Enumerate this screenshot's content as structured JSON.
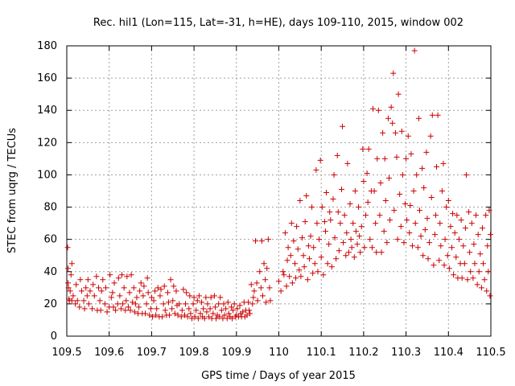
{
  "chart_data": {
    "type": "scatter",
    "title": "Rec. hil1 (Lon=115, Lat=-31, h=HE), days 109-110, 2015, window 002",
    "xlabel": "GPS time / Days of year 2015",
    "ylabel": "STEC from uqrg / TECUs",
    "xlim": [
      109.5,
      110.5
    ],
    "ylim": [
      0,
      180
    ],
    "xticks": [
      "109.5",
      "109.6",
      "109.7",
      "109.8",
      "109.9",
      "110",
      "110.1",
      "110.2",
      "110.3",
      "110.4",
      "110.5"
    ],
    "yticks": [
      "0",
      "20",
      "40",
      "60",
      "80",
      "100",
      "120",
      "140",
      "160",
      "180"
    ],
    "grid": true,
    "marker": "+",
    "color": "#cc0000",
    "points": [
      [
        109.502,
        55
      ],
      [
        109.503,
        42
      ],
      [
        109.503,
        33
      ],
      [
        109.504,
        30
      ],
      [
        109.505,
        23
      ],
      [
        109.506,
        22
      ],
      [
        109.508,
        28
      ],
      [
        109.51,
        38
      ],
      [
        109.512,
        45
      ],
      [
        109.512,
        22
      ],
      [
        109.515,
        25
      ],
      [
        109.52,
        20
      ],
      [
        109.522,
        32
      ],
      [
        109.525,
        22
      ],
      [
        109.53,
        18
      ],
      [
        109.532,
        35
      ],
      [
        109.535,
        28
      ],
      [
        109.54,
        22
      ],
      [
        109.542,
        17
      ],
      [
        109.545,
        30
      ],
      [
        109.548,
        25
      ],
      [
        109.55,
        35
      ],
      [
        109.552,
        20
      ],
      [
        109.555,
        28
      ],
      [
        109.56,
        17
      ],
      [
        109.562,
        32
      ],
      [
        109.565,
        25
      ],
      [
        109.57,
        37
      ],
      [
        109.572,
        16
      ],
      [
        109.575,
        30
      ],
      [
        109.578,
        22
      ],
      [
        109.58,
        16
      ],
      [
        109.582,
        28
      ],
      [
        109.585,
        35
      ],
      [
        109.59,
        20
      ],
      [
        109.592,
        30
      ],
      [
        109.595,
        15
      ],
      [
        109.6,
        18
      ],
      [
        109.602,
        38
      ],
      [
        109.605,
        24
      ],
      [
        109.608,
        27
      ],
      [
        109.61,
        18
      ],
      [
        109.612,
        33
      ],
      [
        109.615,
        16
      ],
      [
        109.62,
        20
      ],
      [
        109.622,
        36
      ],
      [
        109.625,
        25
      ],
      [
        109.628,
        17
      ],
      [
        109.63,
        38
      ],
      [
        109.632,
        20
      ],
      [
        109.635,
        30
      ],
      [
        109.638,
        16
      ],
      [
        109.64,
        22
      ],
      [
        109.642,
        37
      ],
      [
        109.645,
        18
      ],
      [
        109.648,
        27
      ],
      [
        109.65,
        16
      ],
      [
        109.652,
        38
      ],
      [
        109.655,
        21
      ],
      [
        109.658,
        30
      ],
      [
        109.66,
        15
      ],
      [
        109.662,
        20
      ],
      [
        109.665,
        24
      ],
      [
        109.668,
        14
      ],
      [
        109.67,
        18
      ],
      [
        109.672,
        28
      ],
      [
        109.675,
        33
      ],
      [
        109.678,
        14
      ],
      [
        109.68,
        25
      ],
      [
        109.682,
        31
      ],
      [
        109.685,
        14
      ],
      [
        109.688,
        20
      ],
      [
        109.69,
        36
      ],
      [
        109.692,
        27
      ],
      [
        109.695,
        13
      ],
      [
        109.698,
        17
      ],
      [
        109.7,
        24
      ],
      [
        109.702,
        12
      ],
      [
        109.705,
        22
      ],
      [
        109.708,
        28
      ],
      [
        109.71,
        13
      ],
      [
        109.712,
        17
      ],
      [
        109.715,
        30
      ],
      [
        109.718,
        12
      ],
      [
        109.72,
        25
      ],
      [
        109.722,
        29
      ],
      [
        109.725,
        12
      ],
      [
        109.728,
        20
      ],
      [
        109.73,
        31
      ],
      [
        109.732,
        16
      ],
      [
        109.735,
        13
      ],
      [
        109.738,
        27
      ],
      [
        109.74,
        21
      ],
      [
        109.742,
        13
      ],
      [
        109.745,
        35
      ],
      [
        109.748,
        17
      ],
      [
        109.75,
        22
      ],
      [
        109.752,
        31
      ],
      [
        109.755,
        14
      ],
      [
        109.758,
        28
      ],
      [
        109.76,
        19
      ],
      [
        109.762,
        13
      ],
      [
        109.765,
        20
      ],
      [
        109.77,
        12
      ],
      [
        109.772,
        16
      ],
      [
        109.775,
        29
      ],
      [
        109.778,
        13
      ],
      [
        109.78,
        20
      ],
      [
        109.782,
        27
      ],
      [
        109.785,
        12
      ],
      [
        109.788,
        17
      ],
      [
        109.79,
        25
      ],
      [
        109.792,
        14
      ],
      [
        109.795,
        11
      ],
      [
        109.798,
        20
      ],
      [
        109.8,
        24
      ],
      [
        109.802,
        12
      ],
      [
        109.805,
        16
      ],
      [
        109.808,
        22
      ],
      [
        109.81,
        11
      ],
      [
        109.812,
        25
      ],
      [
        109.815,
        14
      ],
      [
        109.818,
        21
      ],
      [
        109.82,
        12
      ],
      [
        109.822,
        17
      ],
      [
        109.825,
        11
      ],
      [
        109.828,
        24
      ],
      [
        109.83,
        15
      ],
      [
        109.832,
        20
      ],
      [
        109.835,
        12
      ],
      [
        109.838,
        17
      ],
      [
        109.84,
        24
      ],
      [
        109.842,
        11
      ],
      [
        109.845,
        14
      ],
      [
        109.848,
        25
      ],
      [
        109.85,
        18
      ],
      [
        109.852,
        11
      ],
      [
        109.855,
        13
      ],
      [
        109.858,
        20
      ],
      [
        109.86,
        12
      ],
      [
        109.862,
        24
      ],
      [
        109.865,
        16
      ],
      [
        109.868,
        11
      ],
      [
        109.87,
        20
      ],
      [
        109.872,
        13
      ],
      [
        109.875,
        17
      ],
      [
        109.878,
        11
      ],
      [
        109.88,
        21
      ],
      [
        109.882,
        14
      ],
      [
        109.885,
        12
      ],
      [
        109.888,
        18
      ],
      [
        109.89,
        11
      ],
      [
        109.892,
        16
      ],
      [
        109.895,
        20
      ],
      [
        109.898,
        12
      ],
      [
        109.9,
        13
      ],
      [
        109.902,
        17
      ],
      [
        109.905,
        12
      ],
      [
        109.908,
        19
      ],
      [
        109.91,
        14
      ],
      [
        109.912,
        12
      ],
      [
        109.915,
        15
      ],
      [
        109.918,
        21
      ],
      [
        109.92,
        12
      ],
      [
        109.922,
        16
      ],
      [
        109.925,
        13
      ],
      [
        109.928,
        21
      ],
      [
        109.93,
        16
      ],
      [
        109.932,
        14
      ],
      [
        109.935,
        32
      ],
      [
        109.938,
        20
      ],
      [
        109.94,
        24
      ],
      [
        109.942,
        28
      ],
      [
        109.945,
        59
      ],
      [
        109.948,
        33
      ],
      [
        109.95,
        22
      ],
      [
        109.955,
        40
      ],
      [
        109.958,
        30
      ],
      [
        109.96,
        59
      ],
      [
        109.962,
        25
      ],
      [
        109.965,
        45
      ],
      [
        109.968,
        35
      ],
      [
        109.97,
        21
      ],
      [
        109.972,
        42
      ],
      [
        109.975,
        60
      ],
      [
        109.978,
        30
      ],
      [
        109.98,
        22
      ],
      [
        110.0,
        34
      ],
      [
        110.005,
        28
      ],
      [
        110.01,
        40
      ],
      [
        110.012,
        38
      ],
      [
        110.015,
        64
      ],
      [
        110.018,
        31
      ],
      [
        110.02,
        47
      ],
      [
        110.022,
        55
      ],
      [
        110.025,
        37
      ],
      [
        110.028,
        50
      ],
      [
        110.03,
        70
      ],
      [
        110.032,
        33
      ],
      [
        110.035,
        59
      ],
      [
        110.038,
        45
      ],
      [
        110.04,
        36
      ],
      [
        110.042,
        68
      ],
      [
        110.045,
        54
      ],
      [
        110.048,
        41
      ],
      [
        110.05,
        84
      ],
      [
        110.052,
        37
      ],
      [
        110.055,
        61
      ],
      [
        110.058,
        50
      ],
      [
        110.06,
        43
      ],
      [
        110.062,
        71
      ],
      [
        110.065,
        87
      ],
      [
        110.068,
        35
      ],
      [
        110.07,
        56
      ],
      [
        110.072,
        48
      ],
      [
        110.075,
        62
      ],
      [
        110.078,
        80
      ],
      [
        110.08,
        39
      ],
      [
        110.082,
        55
      ],
      [
        110.085,
        45
      ],
      [
        110.088,
        103
      ],
      [
        110.09,
        70
      ],
      [
        110.092,
        40
      ],
      [
        110.095,
        60
      ],
      [
        110.098,
        109
      ],
      [
        110.1,
        49
      ],
      [
        110.102,
        80
      ],
      [
        110.105,
        38
      ],
      [
        110.108,
        71
      ],
      [
        110.11,
        65
      ],
      [
        110.112,
        89
      ],
      [
        110.115,
        45
      ],
      [
        110.118,
        57
      ],
      [
        110.12,
        77
      ],
      [
        110.122,
        72
      ],
      [
        110.125,
        43
      ],
      [
        110.128,
        85
      ],
      [
        110.13,
        100
      ],
      [
        110.132,
        61
      ],
      [
        110.135,
        48
      ],
      [
        110.138,
        112
      ],
      [
        110.14,
        77
      ],
      [
        110.142,
        53
      ],
      [
        110.145,
        70
      ],
      [
        110.148,
        91
      ],
      [
        110.15,
        130
      ],
      [
        110.152,
        58
      ],
      [
        110.155,
        75
      ],
      [
        110.158,
        50
      ],
      [
        110.16,
        64
      ],
      [
        110.162,
        107
      ],
      [
        110.165,
        52
      ],
      [
        110.168,
        82
      ],
      [
        110.17,
        60
      ],
      [
        110.172,
        55
      ],
      [
        110.175,
        70
      ],
      [
        110.178,
        49
      ],
      [
        110.18,
        90
      ],
      [
        110.182,
        65
      ],
      [
        110.185,
        57
      ],
      [
        110.188,
        80
      ],
      [
        110.19,
        62
      ],
      [
        110.192,
        52
      ],
      [
        110.195,
        68
      ],
      [
        110.198,
        116
      ],
      [
        110.2,
        96
      ],
      [
        110.202,
        55
      ],
      [
        110.205,
        75
      ],
      [
        110.208,
        101
      ],
      [
        110.21,
        83
      ],
      [
        110.212,
        116
      ],
      [
        110.215,
        60
      ],
      [
        110.218,
        90
      ],
      [
        110.22,
        55
      ],
      [
        110.222,
        141
      ],
      [
        110.225,
        90
      ],
      [
        110.228,
        70
      ],
      [
        110.23,
        52
      ],
      [
        110.232,
        110
      ],
      [
        110.235,
        140
      ],
      [
        110.238,
        75
      ],
      [
        110.24,
        95
      ],
      [
        110.242,
        52
      ],
      [
        110.245,
        126
      ],
      [
        110.248,
        65
      ],
      [
        110.25,
        110
      ],
      [
        110.252,
        84
      ],
      [
        110.255,
        58
      ],
      [
        110.258,
        135
      ],
      [
        110.26,
        98
      ],
      [
        110.262,
        72
      ],
      [
        110.265,
        142
      ],
      [
        110.268,
        132
      ],
      [
        110.27,
        163
      ],
      [
        110.272,
        78
      ],
      [
        110.275,
        126
      ],
      [
        110.278,
        111
      ],
      [
        110.28,
        60
      ],
      [
        110.282,
        150
      ],
      [
        110.285,
        88
      ],
      [
        110.288,
        68
      ],
      [
        110.29,
        127
      ],
      [
        110.292,
        100
      ],
      [
        110.295,
        58
      ],
      [
        110.298,
        82
      ],
      [
        110.3,
        110
      ],
      [
        110.302,
        72
      ],
      [
        110.305,
        124
      ],
      [
        110.308,
        64
      ],
      [
        110.31,
        81
      ],
      [
        110.312,
        113
      ],
      [
        110.315,
        56
      ],
      [
        110.318,
        90
      ],
      [
        110.32,
        177
      ],
      [
        110.322,
        70
      ],
      [
        110.325,
        100
      ],
      [
        110.328,
        55
      ],
      [
        110.33,
        135
      ],
      [
        110.332,
        78
      ],
      [
        110.335,
        62
      ],
      [
        110.338,
        104
      ],
      [
        110.34,
        50
      ],
      [
        110.342,
        92
      ],
      [
        110.345,
        66
      ],
      [
        110.348,
        114
      ],
      [
        110.35,
        73
      ],
      [
        110.352,
        48
      ],
      [
        110.355,
        58
      ],
      [
        110.358,
        124
      ],
      [
        110.36,
        86
      ],
      [
        110.362,
        137
      ],
      [
        110.365,
        44
      ],
      [
        110.368,
        63
      ],
      [
        110.37,
        75
      ],
      [
        110.372,
        105
      ],
      [
        110.375,
        137
      ],
      [
        110.378,
        47
      ],
      [
        110.38,
        70
      ],
      [
        110.382,
        56
      ],
      [
        110.385,
        90
      ],
      [
        110.388,
        107
      ],
      [
        110.39,
        44
      ],
      [
        110.392,
        60
      ],
      [
        110.395,
        80
      ],
      [
        110.398,
        50
      ],
      [
        110.4,
        84
      ],
      [
        110.402,
        42
      ],
      [
        110.405,
        68
      ],
      [
        110.408,
        55
      ],
      [
        110.41,
        76
      ],
      [
        110.412,
        38
      ],
      [
        110.415,
        64
      ],
      [
        110.418,
        49
      ],
      [
        110.42,
        75
      ],
      [
        110.422,
        36
      ],
      [
        110.425,
        60
      ],
      [
        110.428,
        45
      ],
      [
        110.43,
        72
      ],
      [
        110.432,
        36
      ],
      [
        110.435,
        56
      ],
      [
        110.438,
        45
      ],
      [
        110.44,
        67
      ],
      [
        110.442,
        100
      ],
      [
        110.445,
        35
      ],
      [
        110.448,
        77
      ],
      [
        110.45,
        52
      ],
      [
        110.452,
        40
      ],
      [
        110.455,
        70
      ],
      [
        110.458,
        36
      ],
      [
        110.46,
        57
      ],
      [
        110.462,
        45
      ],
      [
        110.465,
        75
      ],
      [
        110.468,
        32
      ],
      [
        110.47,
        63
      ],
      [
        110.472,
        40
      ],
      [
        110.475,
        51
      ],
      [
        110.478,
        30
      ],
      [
        110.48,
        67
      ],
      [
        110.482,
        45
      ],
      [
        110.485,
        35
      ],
      [
        110.488,
        75
      ],
      [
        110.49,
        28
      ],
      [
        110.492,
        56
      ],
      [
        110.494,
        40
      ],
      [
        110.496,
        78
      ],
      [
        110.498,
        25
      ],
      [
        110.499,
        63
      ]
    ]
  }
}
